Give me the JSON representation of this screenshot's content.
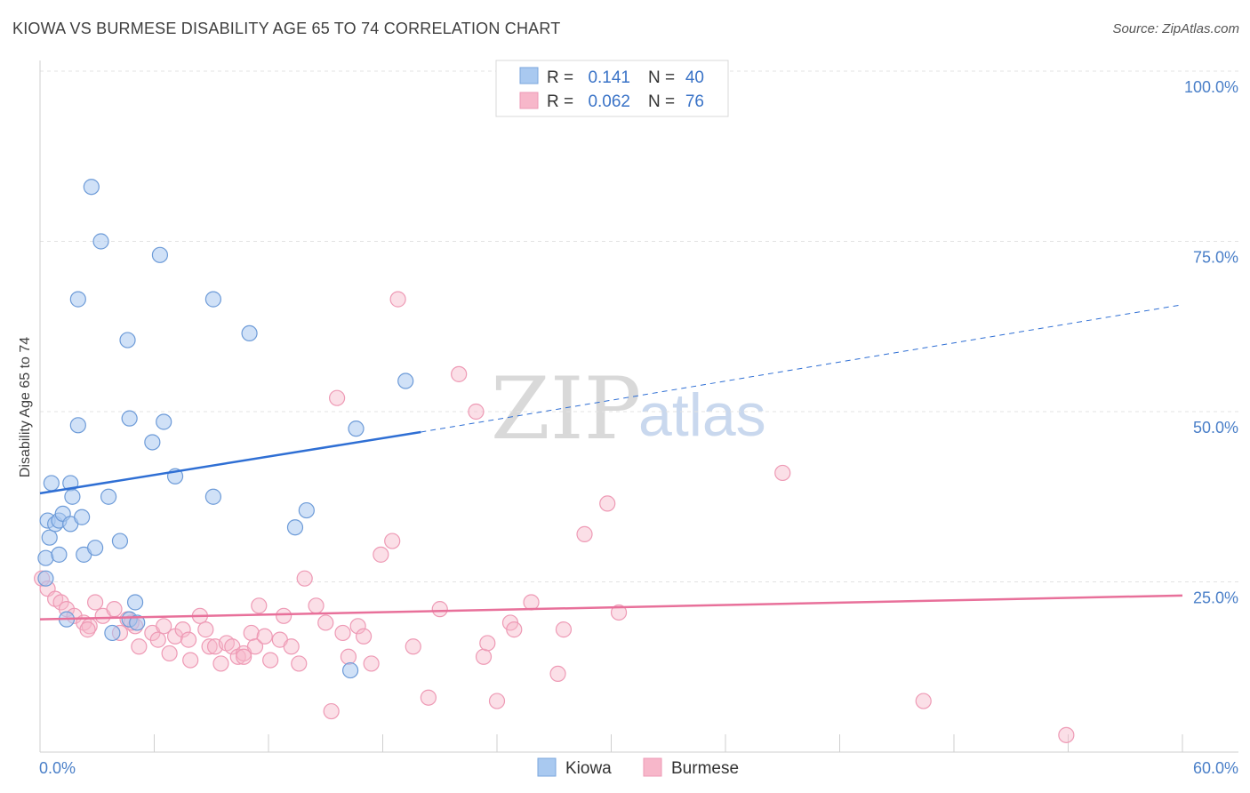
{
  "title": "KIOWA VS BURMESE DISABILITY AGE 65 TO 74 CORRELATION CHART",
  "source": "Source: ZipAtlas.com",
  "watermark": {
    "zip": "ZIP",
    "atlas": "atlas"
  },
  "colors": {
    "kiowa": "#a9c9f0",
    "kiowa_line": "#2f6fd4",
    "burmese": "#f7b7ca",
    "burmese_line": "#e8709a",
    "tick": "#4a7fc8"
  },
  "legend_top": [
    {
      "key": "kiowa",
      "r_label": "R =",
      "r_value": "0.141",
      "n_label": "N =",
      "n_value": "40"
    },
    {
      "key": "burmese",
      "r_label": "R =",
      "r_value": "0.062",
      "n_label": "N =",
      "n_value": "76"
    }
  ],
  "legend_bottom": [
    {
      "key": "kiowa",
      "label": "Kiowa"
    },
    {
      "key": "burmese",
      "label": "Burmese"
    }
  ],
  "chart_data": {
    "type": "scatter",
    "title": "KIOWA VS BURMESE DISABILITY AGE 65 TO 74 CORRELATION CHART",
    "xlabel": "",
    "ylabel": "Disability Age 65 to 74",
    "xlim": [
      0,
      60
    ],
    "ylim": [
      0,
      100
    ],
    "x_tick_labels": [
      "0.0%",
      "60.0%"
    ],
    "y_ticks": [
      25,
      50,
      75,
      100
    ],
    "y_tick_labels": [
      "25.0%",
      "50.0%",
      "75.0%",
      "100.0%"
    ],
    "grid": true,
    "series": [
      {
        "name": "Kiowa",
        "color": "#a9c9f0",
        "trend": {
          "x0": 0,
          "y0": 38.0,
          "x1": 20.0,
          "y1": 47.0,
          "dashed_to_x": 60,
          "dashed_to_y": 65.7
        },
        "points": [
          [
            0.3,
            28.5
          ],
          [
            0.3,
            25.5
          ],
          [
            0.4,
            34.0
          ],
          [
            0.5,
            31.5
          ],
          [
            0.6,
            39.5
          ],
          [
            0.8,
            33.5
          ],
          [
            1.0,
            34.0
          ],
          [
            1.0,
            29.0
          ],
          [
            1.2,
            35.0
          ],
          [
            1.4,
            19.5
          ],
          [
            1.6,
            33.5
          ],
          [
            1.6,
            39.5
          ],
          [
            1.7,
            37.5
          ],
          [
            2.0,
            48.0
          ],
          [
            2.0,
            66.5
          ],
          [
            2.2,
            34.5
          ],
          [
            2.3,
            29.0
          ],
          [
            2.7,
            83.0
          ],
          [
            2.9,
            30.0
          ],
          [
            3.2,
            75.0
          ],
          [
            3.6,
            37.5
          ],
          [
            3.8,
            17.5
          ],
          [
            4.2,
            31.0
          ],
          [
            4.6,
            60.5
          ],
          [
            4.7,
            49.0
          ],
          [
            4.7,
            19.5
          ],
          [
            5.0,
            22.0
          ],
          [
            5.9,
            45.5
          ],
          [
            6.3,
            73.0
          ],
          [
            6.5,
            48.5
          ],
          [
            7.1,
            40.5
          ],
          [
            9.1,
            66.5
          ],
          [
            9.1,
            37.5
          ],
          [
            11.0,
            61.5
          ],
          [
            13.4,
            33.0
          ],
          [
            14.0,
            35.5
          ],
          [
            16.3,
            12.0
          ],
          [
            16.6,
            47.5
          ],
          [
            19.2,
            54.5
          ],
          [
            5.1,
            19.0
          ]
        ]
      },
      {
        "name": "Burmese",
        "color": "#f7b7ca",
        "trend": {
          "x0": 0,
          "y0": 19.5,
          "x1": 60,
          "y1": 23.0
        },
        "points": [
          [
            0.1,
            25.5
          ],
          [
            0.4,
            24.0
          ],
          [
            0.8,
            22.5
          ],
          [
            1.1,
            22.0
          ],
          [
            1.4,
            21.0
          ],
          [
            1.8,
            20.0
          ],
          [
            2.3,
            19.0
          ],
          [
            2.6,
            18.5
          ],
          [
            2.9,
            22.0
          ],
          [
            3.3,
            20.0
          ],
          [
            3.9,
            21.0
          ],
          [
            4.2,
            17.5
          ],
          [
            4.6,
            19.5
          ],
          [
            5.0,
            18.5
          ],
          [
            5.2,
            15.5
          ],
          [
            5.9,
            17.5
          ],
          [
            6.2,
            16.5
          ],
          [
            6.5,
            18.5
          ],
          [
            6.8,
            14.5
          ],
          [
            7.1,
            17.0
          ],
          [
            7.5,
            18.0
          ],
          [
            7.8,
            16.5
          ],
          [
            7.9,
            13.5
          ],
          [
            8.4,
            20.0
          ],
          [
            8.7,
            18.0
          ],
          [
            8.9,
            15.5
          ],
          [
            9.2,
            15.5
          ],
          [
            9.5,
            13.0
          ],
          [
            9.8,
            16.0
          ],
          [
            10.1,
            15.5
          ],
          [
            10.4,
            14.0
          ],
          [
            10.7,
            14.5
          ],
          [
            11.1,
            17.5
          ],
          [
            11.3,
            15.5
          ],
          [
            11.5,
            21.5
          ],
          [
            11.8,
            17.0
          ],
          [
            12.1,
            13.5
          ],
          [
            12.6,
            16.5
          ],
          [
            12.8,
            20.0
          ],
          [
            13.2,
            15.5
          ],
          [
            13.6,
            13.0
          ],
          [
            13.9,
            25.5
          ],
          [
            14.5,
            21.5
          ],
          [
            15.0,
            19.0
          ],
          [
            15.3,
            6.0
          ],
          [
            15.6,
            52.0
          ],
          [
            15.9,
            17.5
          ],
          [
            16.2,
            14.0
          ],
          [
            16.7,
            18.5
          ],
          [
            17.0,
            17.0
          ],
          [
            17.4,
            13.0
          ],
          [
            17.9,
            29.0
          ],
          [
            18.5,
            31.0
          ],
          [
            18.8,
            66.5
          ],
          [
            19.6,
            15.5
          ],
          [
            20.4,
            8.0
          ],
          [
            21.0,
            21.0
          ],
          [
            22.0,
            55.5
          ],
          [
            22.9,
            50.0
          ],
          [
            23.3,
            14.0
          ],
          [
            23.5,
            16.0
          ],
          [
            24.0,
            7.5
          ],
          [
            24.7,
            19.0
          ],
          [
            24.9,
            18.0
          ],
          [
            25.8,
            22.0
          ],
          [
            27.2,
            11.5
          ],
          [
            27.5,
            18.0
          ],
          [
            28.6,
            32.0
          ],
          [
            29.8,
            36.5
          ],
          [
            30.4,
            20.5
          ],
          [
            39.0,
            41.0
          ],
          [
            46.4,
            7.5
          ],
          [
            53.9,
            2.5
          ],
          [
            10.7,
            14.0
          ],
          [
            2.5,
            18.0
          ],
          [
            4.8,
            19.0
          ]
        ]
      }
    ]
  }
}
